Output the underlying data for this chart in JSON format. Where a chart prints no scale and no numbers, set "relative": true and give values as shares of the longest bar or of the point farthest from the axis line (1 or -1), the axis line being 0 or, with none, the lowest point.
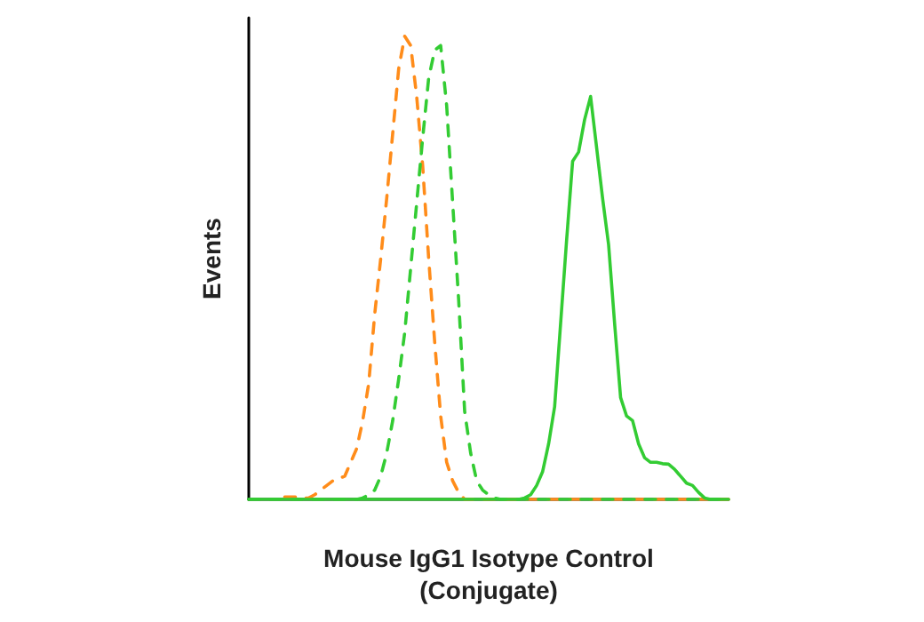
{
  "chart_data": {
    "type": "line",
    "relative": true,
    "xlabel": "Mouse IgG1 Isotype Control\n(Conjugate)",
    "ylabel": "Events",
    "grid": false,
    "marker": "none",
    "categories": [
      null,
      null,
      null,
      null,
      null,
      null,
      null,
      null,
      null,
      null,
      null,
      null,
      null,
      null,
      null,
      null,
      null,
      null,
      null,
      null,
      null,
      null,
      null,
      null,
      null,
      null,
      null,
      null,
      null,
      null,
      null,
      null,
      null,
      null,
      null,
      null,
      null,
      null,
      null,
      null,
      null,
      null,
      null,
      null,
      null,
      null,
      null,
      null,
      null,
      null,
      null,
      null,
      null,
      null,
      null,
      null,
      null,
      null,
      null,
      null,
      null,
      null,
      null,
      null,
      null,
      null,
      null,
      null,
      null,
      null,
      null,
      null,
      null,
      null,
      null,
      null,
      null,
      null,
      null,
      null,
      null
    ],
    "series": [
      {
        "color": "#ff8c1a",
        "line_style": "dashed",
        "values": [
          null,
          null,
          null,
          null,
          null,
          null,
          0.005,
          0.005,
          0.005,
          0.003,
          0.003,
          0.01,
          0.02,
          0.03,
          0.04,
          0.045,
          0.05,
          0.08,
          0.11,
          0.17,
          0.25,
          0.4,
          0.52,
          0.65,
          0.79,
          0.93,
          1.0,
          0.98,
          0.87,
          0.72,
          0.52,
          0.34,
          0.18,
          0.08,
          0.04,
          0.015,
          0,
          0,
          0,
          0,
          0,
          0,
          0,
          0,
          0,
          0,
          0,
          0,
          0,
          0,
          0,
          0,
          0,
          0,
          0,
          0,
          0,
          0,
          0,
          0,
          0,
          0,
          0,
          0,
          0,
          0,
          0,
          0,
          0,
          0,
          0,
          0,
          0,
          0,
          0,
          0,
          0,
          0,
          0,
          0,
          0
        ]
      },
      {
        "color": "#33cc33",
        "line_style": "dashed",
        "values": [
          0,
          0,
          0,
          0,
          0,
          0,
          0,
          0,
          0,
          0,
          0,
          0,
          0,
          0,
          0,
          0,
          0,
          0,
          0,
          0.003,
          0.01,
          0.02,
          0.05,
          0.1,
          0.17,
          0.26,
          0.36,
          0.5,
          0.64,
          0.78,
          0.91,
          0.97,
          0.98,
          0.85,
          0.64,
          0.43,
          0.19,
          0.1,
          0.04,
          0.02,
          0.01,
          0.003,
          0,
          0,
          0,
          0,
          0,
          0,
          0,
          0,
          0,
          0,
          0,
          0,
          0,
          0,
          0,
          0,
          0,
          0,
          0,
          0,
          0,
          0,
          0,
          0,
          0,
          0,
          0,
          0,
          0,
          0,
          0,
          0,
          0,
          0,
          0,
          0,
          0,
          0,
          0
        ]
      },
      {
        "color": "#33cc33",
        "line_style": "solid",
        "values": [
          0,
          0,
          0,
          0,
          0,
          0,
          0,
          0,
          0,
          0,
          0,
          0,
          0,
          0,
          0,
          0,
          0,
          0,
          0,
          0,
          0,
          0,
          0,
          0,
          0,
          0,
          0,
          0,
          0,
          0,
          0,
          0,
          0,
          0,
          0,
          0,
          0,
          0,
          0,
          0,
          0,
          0,
          0,
          0,
          0,
          0,
          0.003,
          0.01,
          0.03,
          0.06,
          0.12,
          0.2,
          0.38,
          0.56,
          0.73,
          0.75,
          0.82,
          0.87,
          0.76,
          0.65,
          0.55,
          0.38,
          0.22,
          0.18,
          0.17,
          0.12,
          0.09,
          0.08,
          0.08,
          0.077,
          0.076,
          0.065,
          0.05,
          0.035,
          0.03,
          0.015,
          0.003,
          0,
          0,
          0,
          0
        ]
      }
    ]
  }
}
